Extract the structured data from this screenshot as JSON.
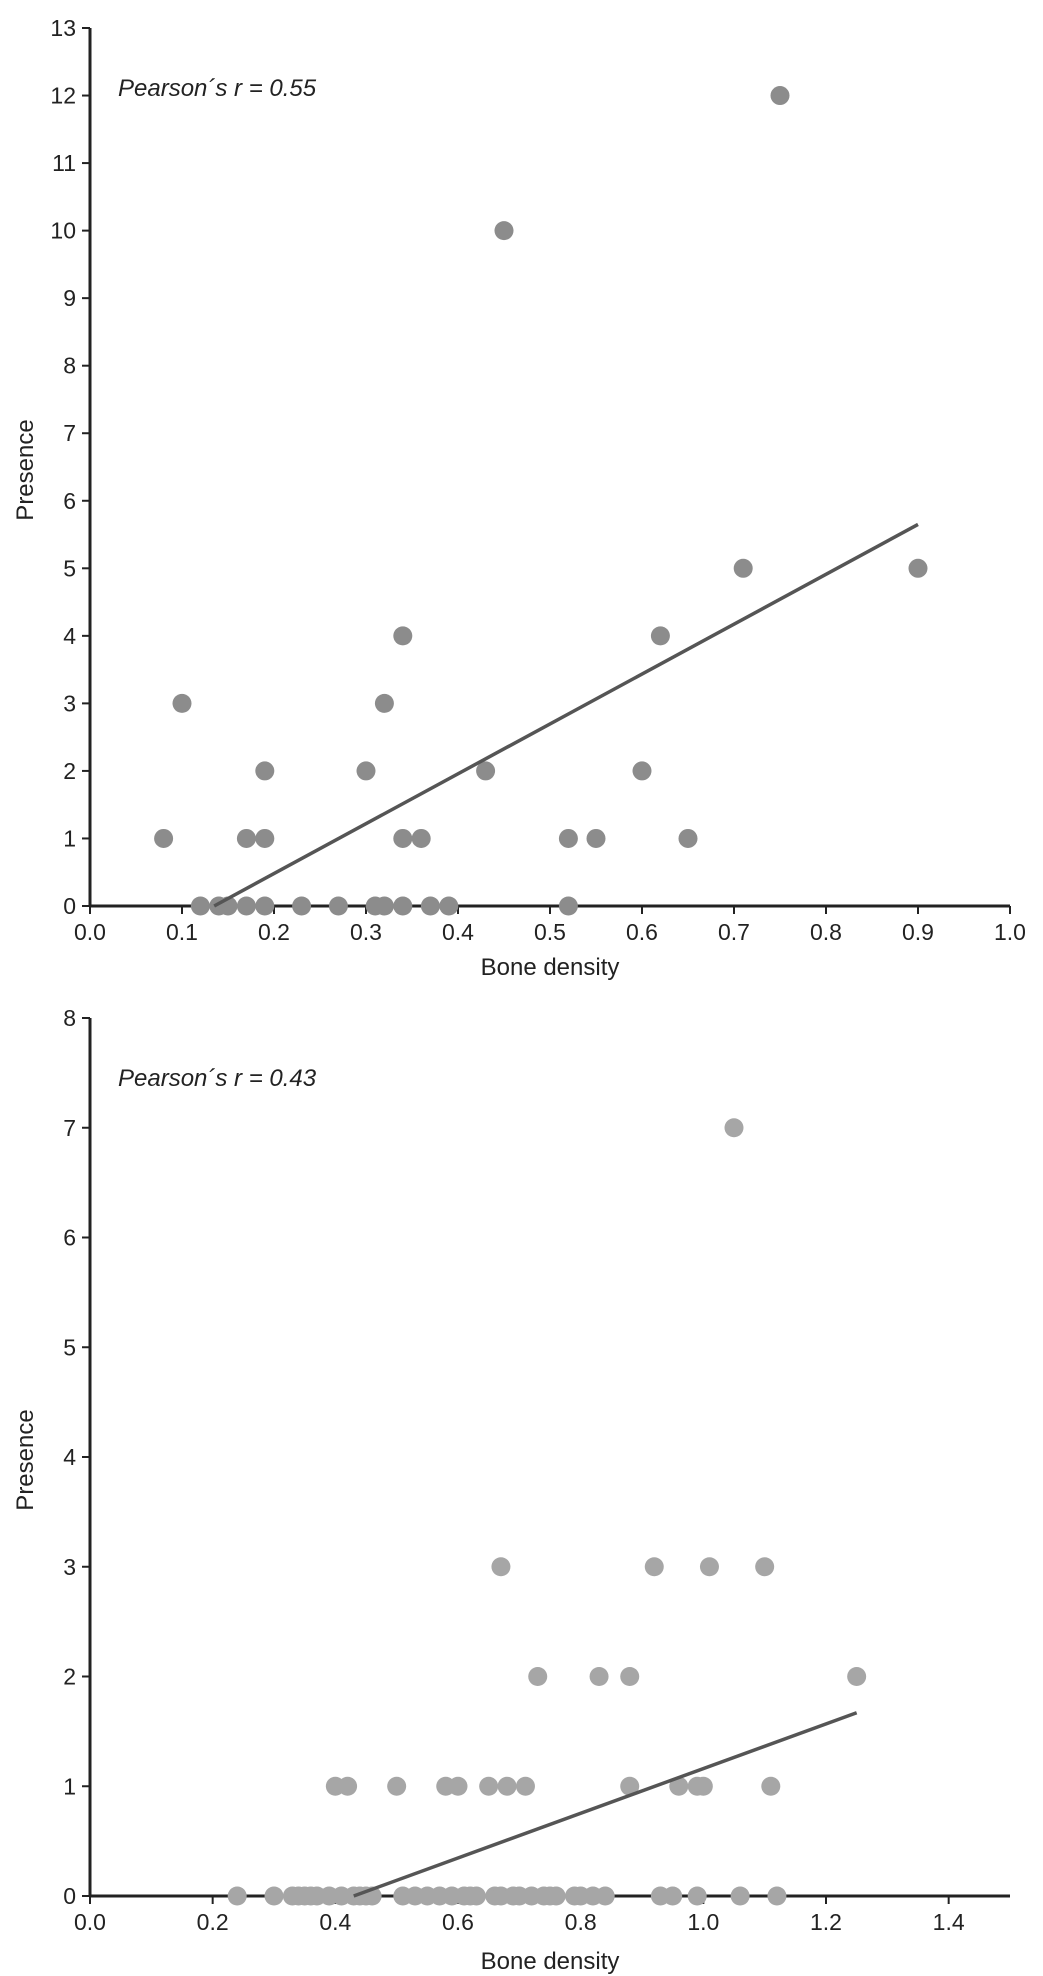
{
  "chart_data": [
    {
      "type": "scatter",
      "annotation": "Pearson´s r = 0.55",
      "xlabel": "Bone density",
      "ylabel": "Presence",
      "xlim": [
        0.0,
        1.0
      ],
      "ylim": [
        0,
        13
      ],
      "x_ticks": [
        "0.0",
        "0.1",
        "0.2",
        "0.3",
        "0.4",
        "0.5",
        "0.6",
        "0.7",
        "0.8",
        "0.9",
        "1.0"
      ],
      "y_ticks": [
        "0",
        "1",
        "2",
        "3",
        "4",
        "5",
        "6",
        "7",
        "8",
        "9",
        "10",
        "11",
        "12",
        "13"
      ],
      "grid": false,
      "point_color": "#8c8c8c",
      "line_color": "#555555",
      "points": [
        {
          "x": 0.08,
          "y": 1
        },
        {
          "x": 0.1,
          "y": 3
        },
        {
          "x": 0.12,
          "y": 0
        },
        {
          "x": 0.14,
          "y": 0
        },
        {
          "x": 0.15,
          "y": 0
        },
        {
          "x": 0.17,
          "y": 0
        },
        {
          "x": 0.17,
          "y": 1
        },
        {
          "x": 0.19,
          "y": 0
        },
        {
          "x": 0.19,
          "y": 1
        },
        {
          "x": 0.19,
          "y": 2
        },
        {
          "x": 0.23,
          "y": 0
        },
        {
          "x": 0.27,
          "y": 0
        },
        {
          "x": 0.3,
          "y": 2
        },
        {
          "x": 0.31,
          "y": 0
        },
        {
          "x": 0.32,
          "y": 0
        },
        {
          "x": 0.32,
          "y": 3
        },
        {
          "x": 0.34,
          "y": 0
        },
        {
          "x": 0.34,
          "y": 1
        },
        {
          "x": 0.34,
          "y": 4
        },
        {
          "x": 0.36,
          "y": 1
        },
        {
          "x": 0.37,
          "y": 0
        },
        {
          "x": 0.39,
          "y": 0
        },
        {
          "x": 0.43,
          "y": 2
        },
        {
          "x": 0.45,
          "y": 10
        },
        {
          "x": 0.52,
          "y": 0
        },
        {
          "x": 0.52,
          "y": 1
        },
        {
          "x": 0.55,
          "y": 1
        },
        {
          "x": 0.6,
          "y": 2
        },
        {
          "x": 0.62,
          "y": 4
        },
        {
          "x": 0.65,
          "y": 1
        },
        {
          "x": 0.71,
          "y": 5
        },
        {
          "x": 0.75,
          "y": 12
        },
        {
          "x": 0.9,
          "y": 5
        }
      ],
      "fit_line": [
        {
          "x": 0.135,
          "y": 0
        },
        {
          "x": 0.9,
          "y": 5.65
        }
      ]
    },
    {
      "type": "scatter",
      "annotation": "Pearson´s r = 0.43",
      "xlabel": "Bone density",
      "ylabel": "Presence",
      "xlim": [
        0.0,
        1.5
      ],
      "ylim": [
        0,
        8
      ],
      "x_ticks": [
        "0.0",
        "0.2",
        "0.4",
        "0.6",
        "0.8",
        "1.0",
        "1.2",
        "1.4"
      ],
      "y_ticks": [
        "0",
        "1",
        "2",
        "3",
        "4",
        "5",
        "6",
        "7",
        "8"
      ],
      "grid": false,
      "point_color": "#a6a6a6",
      "line_color": "#555555",
      "points": [
        {
          "x": 0.24,
          "y": 0
        },
        {
          "x": 0.3,
          "y": 0
        },
        {
          "x": 0.33,
          "y": 0
        },
        {
          "x": 0.34,
          "y": 0
        },
        {
          "x": 0.35,
          "y": 0
        },
        {
          "x": 0.36,
          "y": 0
        },
        {
          "x": 0.37,
          "y": 0
        },
        {
          "x": 0.39,
          "y": 0
        },
        {
          "x": 0.4,
          "y": 1
        },
        {
          "x": 0.41,
          "y": 0
        },
        {
          "x": 0.42,
          "y": 1
        },
        {
          "x": 0.43,
          "y": 0
        },
        {
          "x": 0.44,
          "y": 0
        },
        {
          "x": 0.45,
          "y": 0
        },
        {
          "x": 0.46,
          "y": 0
        },
        {
          "x": 0.5,
          "y": 1
        },
        {
          "x": 0.51,
          "y": 0
        },
        {
          "x": 0.53,
          "y": 0
        },
        {
          "x": 0.55,
          "y": 0
        },
        {
          "x": 0.57,
          "y": 0
        },
        {
          "x": 0.58,
          "y": 1
        },
        {
          "x": 0.59,
          "y": 0
        },
        {
          "x": 0.6,
          "y": 1
        },
        {
          "x": 0.61,
          "y": 0
        },
        {
          "x": 0.62,
          "y": 0
        },
        {
          "x": 0.63,
          "y": 0
        },
        {
          "x": 0.65,
          "y": 1
        },
        {
          "x": 0.66,
          "y": 0
        },
        {
          "x": 0.67,
          "y": 3
        },
        {
          "x": 0.67,
          "y": 0
        },
        {
          "x": 0.68,
          "y": 1
        },
        {
          "x": 0.69,
          "y": 0
        },
        {
          "x": 0.7,
          "y": 0
        },
        {
          "x": 0.71,
          "y": 1
        },
        {
          "x": 0.72,
          "y": 0
        },
        {
          "x": 0.73,
          "y": 2
        },
        {
          "x": 0.74,
          "y": 0
        },
        {
          "x": 0.75,
          "y": 0
        },
        {
          "x": 0.76,
          "y": 0
        },
        {
          "x": 0.79,
          "y": 0
        },
        {
          "x": 0.8,
          "y": 0
        },
        {
          "x": 0.82,
          "y": 0
        },
        {
          "x": 0.83,
          "y": 2
        },
        {
          "x": 0.84,
          "y": 0
        },
        {
          "x": 0.88,
          "y": 1
        },
        {
          "x": 0.88,
          "y": 2
        },
        {
          "x": 0.92,
          "y": 3
        },
        {
          "x": 0.93,
          "y": 0
        },
        {
          "x": 0.95,
          "y": 0
        },
        {
          "x": 0.96,
          "y": 1
        },
        {
          "x": 0.99,
          "y": 0
        },
        {
          "x": 0.99,
          "y": 1
        },
        {
          "x": 1.0,
          "y": 1
        },
        {
          "x": 1.01,
          "y": 3
        },
        {
          "x": 1.05,
          "y": 7
        },
        {
          "x": 1.06,
          "y": 0
        },
        {
          "x": 1.1,
          "y": 3
        },
        {
          "x": 1.11,
          "y": 1
        },
        {
          "x": 1.12,
          "y": 0
        },
        {
          "x": 1.25,
          "y": 2
        }
      ],
      "fit_line": [
        {
          "x": 0.43,
          "y": 0
        },
        {
          "x": 1.25,
          "y": 1.67
        }
      ]
    }
  ]
}
